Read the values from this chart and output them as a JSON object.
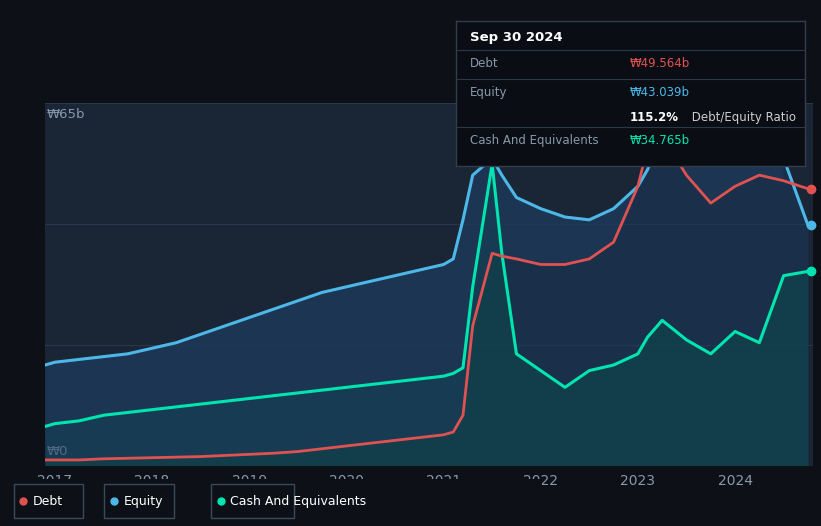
{
  "bg_color": "#0d1117",
  "plot_bg_color": "#1a2535",
  "debt_color": "#e05252",
  "equity_color": "#4db8e8",
  "cash_color": "#00e5b0",
  "y_label_top": "₩65b",
  "y_label_bottom": "₩0",
  "x_ticks": [
    "2017",
    "2018",
    "2019",
    "2020",
    "2021",
    "2022",
    "2023",
    "2024"
  ],
  "ylim": [
    0,
    65
  ],
  "tooltip_title": "Sep 30 2024",
  "debt_label": "Debt",
  "equity_label": "Equity",
  "cash_label": "Cash And Equivalents",
  "debt_value": "₩49.564b",
  "equity_value": "₩43.039b",
  "ratio_text": "115.2%",
  "ratio_suffix": " Debt/Equity Ratio",
  "cash_value": "₩34.765b",
  "legend_debt": "Debt",
  "legend_equity": "Equity",
  "legend_cash": "Cash And Equivalents",
  "years": [
    2016.9,
    2017.0,
    2017.25,
    2017.5,
    2017.75,
    2018.0,
    2018.25,
    2018.5,
    2018.75,
    2019.0,
    2019.25,
    2019.5,
    2019.75,
    2020.0,
    2020.25,
    2020.5,
    2020.75,
    2021.0,
    2021.1,
    2021.2,
    2021.3,
    2021.5,
    2021.6,
    2021.75,
    2022.0,
    2022.25,
    2022.5,
    2022.75,
    2023.0,
    2023.1,
    2023.25,
    2023.5,
    2023.75,
    2024.0,
    2024.25,
    2024.5,
    2024.75
  ],
  "debt": [
    1.0,
    1.0,
    1.0,
    1.2,
    1.3,
    1.4,
    1.5,
    1.6,
    1.8,
    2.0,
    2.2,
    2.5,
    3.0,
    3.5,
    4.0,
    4.5,
    5.0,
    5.5,
    6.0,
    9.0,
    25.0,
    38.0,
    37.5,
    37.0,
    36.0,
    36.0,
    37.0,
    40.0,
    50.0,
    57.0,
    59.0,
    52.0,
    47.0,
    50.0,
    52.0,
    51.0,
    49.564
  ],
  "equity": [
    18.0,
    18.5,
    19.0,
    19.5,
    20.0,
    21.0,
    22.0,
    23.5,
    25.0,
    26.5,
    28.0,
    29.5,
    31.0,
    32.0,
    33.0,
    34.0,
    35.0,
    36.0,
    37.0,
    44.0,
    52.0,
    55.0,
    52.0,
    48.0,
    46.0,
    44.5,
    44.0,
    46.0,
    50.0,
    53.0,
    60.0,
    58.5,
    56.0,
    57.5,
    59.0,
    55.0,
    43.039
  ],
  "cash": [
    7.0,
    7.5,
    8.0,
    9.0,
    9.5,
    10.0,
    10.5,
    11.0,
    11.5,
    12.0,
    12.5,
    13.0,
    13.5,
    14.0,
    14.5,
    15.0,
    15.5,
    16.0,
    16.5,
    17.5,
    32.0,
    54.0,
    38.0,
    20.0,
    17.0,
    14.0,
    17.0,
    18.0,
    20.0,
    23.0,
    26.0,
    22.5,
    20.0,
    24.0,
    22.0,
    34.0,
    34.765
  ]
}
